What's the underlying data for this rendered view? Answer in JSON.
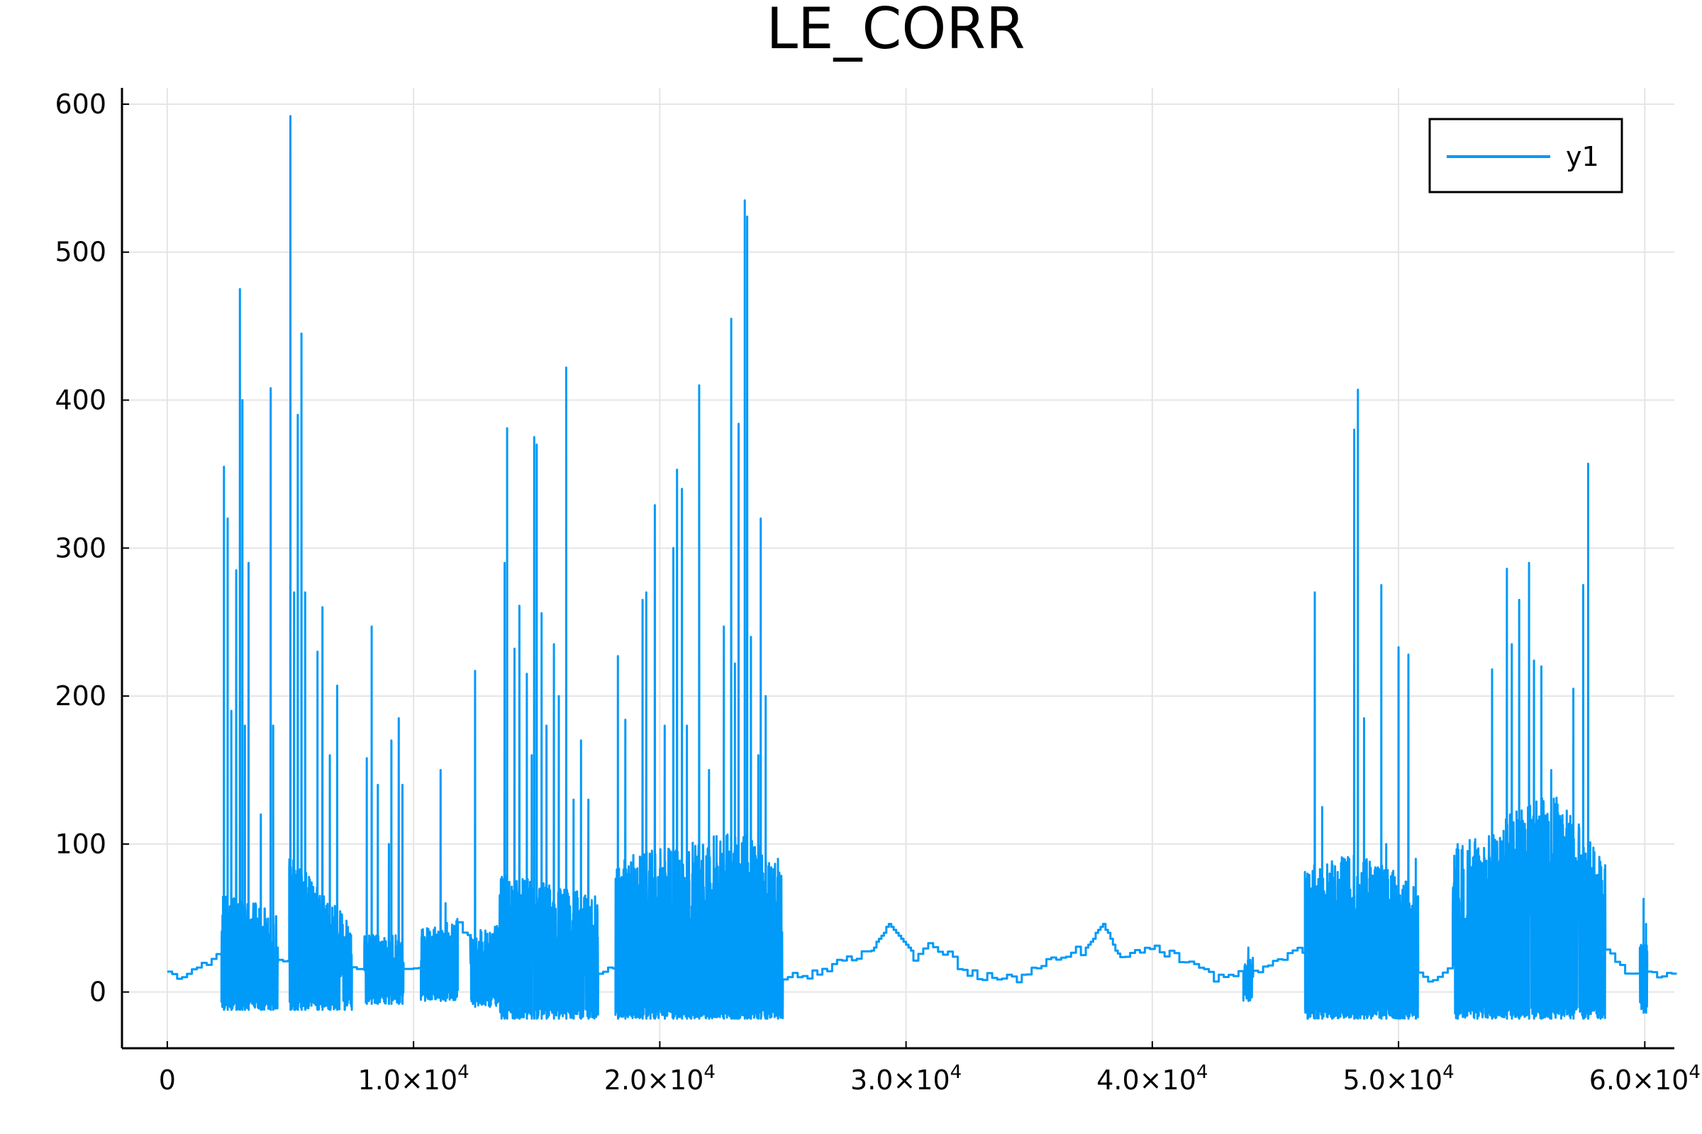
{
  "chart_data": {
    "type": "line",
    "title": "LE_CORR",
    "xlabel": "",
    "ylabel": "",
    "xlim": [
      -1840,
      61200
    ],
    "ylim": [
      -38,
      611
    ],
    "x_ticks": [
      {
        "value": 0,
        "mantissa": "0",
        "exp": ""
      },
      {
        "value": 10000,
        "mantissa": "1.0×10",
        "exp": "4"
      },
      {
        "value": 20000,
        "mantissa": "2.0×10",
        "exp": "4"
      },
      {
        "value": 30000,
        "mantissa": "3.0×10",
        "exp": "4"
      },
      {
        "value": 40000,
        "mantissa": "4.0×10",
        "exp": "4"
      },
      {
        "value": 50000,
        "mantissa": "5.0×10",
        "exp": "4"
      },
      {
        "value": 60000,
        "mantissa": "6.0×10",
        "exp": "4"
      }
    ],
    "y_ticks": [
      0,
      100,
      200,
      300,
      400,
      500,
      600
    ],
    "grid": true,
    "legend_position": "top-right",
    "series": [
      {
        "name": "y1",
        "color": "#009af9",
        "segments": [
          {
            "kind": "step",
            "start": 0,
            "end": 2200,
            "base": [
              [
                0,
                12
              ],
              [
                600,
                10
              ],
              [
                1100,
                15
              ],
              [
                1600,
                20
              ],
              [
                2000,
                24
              ]
            ],
            "noise": 2
          },
          {
            "kind": "noisy",
            "start": 2200,
            "end": 4500,
            "base": [
              [
                2200,
                35
              ],
              [
                3200,
                30
              ],
              [
                4500,
                18
              ]
            ],
            "amp": 30,
            "low": -12,
            "spikes": [
              [
                2300,
                355
              ],
              [
                2450,
                320
              ],
              [
                2600,
                190
              ],
              [
                2800,
                285
              ],
              [
                2950,
                475
              ],
              [
                3050,
                400
              ],
              [
                3150,
                180
              ],
              [
                3300,
                290
              ],
              [
                3800,
                120
              ],
              [
                4200,
                408
              ],
              [
                4300,
                180
              ]
            ]
          },
          {
            "kind": "step",
            "start": 4500,
            "end": 4950,
            "base": [
              [
                4500,
                20
              ],
              [
                4950,
                22
              ]
            ],
            "noise": 2
          },
          {
            "kind": "noisy",
            "start": 4950,
            "end": 7500,
            "base": [
              [
                4950,
                60
              ],
              [
                6000,
                40
              ],
              [
                7500,
                15
              ]
            ],
            "amp": 30,
            "low": -12,
            "spikes": [
              [
                5000,
                592
              ],
              [
                5150,
                270
              ],
              [
                5300,
                390
              ],
              [
                5450,
                445
              ],
              [
                5600,
                270
              ],
              [
                6100,
                230
              ],
              [
                6300,
                260
              ],
              [
                6600,
                160
              ],
              [
                6900,
                207
              ],
              [
                7200,
                30
              ]
            ]
          },
          {
            "kind": "step",
            "start": 7500,
            "end": 8000,
            "base": [
              [
                7500,
                15
              ],
              [
                8000,
                18
              ]
            ],
            "noise": 2
          },
          {
            "kind": "noisy",
            "start": 8000,
            "end": 9600,
            "base": [
              [
                8000,
                20
              ],
              [
                9600,
                18
              ]
            ],
            "amp": 18,
            "low": -8,
            "spikes": [
              [
                8100,
                158
              ],
              [
                8300,
                247
              ],
              [
                8550,
                140
              ],
              [
                9000,
                100
              ],
              [
                9100,
                170
              ],
              [
                9400,
                185
              ],
              [
                9550,
                140
              ]
            ]
          },
          {
            "kind": "step",
            "start": 9600,
            "end": 10300,
            "base": [
              [
                9600,
                14
              ],
              [
                10300,
                20
              ]
            ],
            "noise": 3
          },
          {
            "kind": "noisy",
            "start": 10300,
            "end": 11800,
            "base": [
              [
                10300,
                22
              ],
              [
                11800,
                30
              ]
            ],
            "amp": 18,
            "low": -6,
            "spikes": [
              [
                11100,
                150
              ],
              [
                11300,
                60
              ]
            ]
          },
          {
            "kind": "step",
            "start": 11800,
            "end": 12300,
            "base": [
              [
                11800,
                45
              ],
              [
                12300,
                40
              ]
            ],
            "noise": 3
          },
          {
            "kind": "noisy",
            "start": 12300,
            "end": 13500,
            "base": [
              [
                12300,
                20
              ],
              [
                13500,
                25
              ]
            ],
            "amp": 18,
            "low": -10,
            "spikes": [
              [
                12500,
                217
              ],
              [
                13100,
                40
              ]
            ]
          },
          {
            "kind": "noisy",
            "start": 13500,
            "end": 17500,
            "base": [
              [
                13500,
                40
              ],
              [
                15500,
                35
              ],
              [
                17500,
                25
              ]
            ],
            "amp": 35,
            "low": -18,
            "spikes": [
              [
                13700,
                290
              ],
              [
                13800,
                381
              ],
              [
                14100,
                232
              ],
              [
                14300,
                261
              ],
              [
                14600,
                215
              ],
              [
                14800,
                160
              ],
              [
                14900,
                375
              ],
              [
                15000,
                370
              ],
              [
                15200,
                256
              ],
              [
                15400,
                180
              ],
              [
                15700,
                235
              ],
              [
                15900,
                200
              ],
              [
                16200,
                422
              ],
              [
                16500,
                130
              ],
              [
                16800,
                170
              ],
              [
                17100,
                130
              ]
            ]
          },
          {
            "kind": "step",
            "start": 17500,
            "end": 18200,
            "base": [
              [
                17500,
                14
              ],
              [
                18200,
                18
              ]
            ],
            "noise": 2
          },
          {
            "kind": "noisy",
            "start": 18200,
            "end": 25000,
            "base": [
              [
                18200,
                40
              ],
              [
                21000,
                50
              ],
              [
                23500,
                60
              ],
              [
                25000,
                30
              ]
            ],
            "amp": 45,
            "low": -18,
            "spikes": [
              [
                18300,
                227
              ],
              [
                18600,
                184
              ],
              [
                19300,
                265
              ],
              [
                19450,
                270
              ],
              [
                19800,
                329
              ],
              [
                20200,
                180
              ],
              [
                20550,
                300
              ],
              [
                20700,
                353
              ],
              [
                20900,
                340
              ],
              [
                21100,
                180
              ],
              [
                21600,
                410
              ],
              [
                22000,
                150
              ],
              [
                22600,
                247
              ],
              [
                22900,
                455
              ],
              [
                23050,
                222
              ],
              [
                23200,
                384
              ],
              [
                23450,
                535
              ],
              [
                23550,
                524
              ],
              [
                23700,
                240
              ],
              [
                24000,
                160
              ],
              [
                24100,
                320
              ],
              [
                24300,
                200
              ],
              [
                24800,
                90
              ]
            ]
          },
          {
            "kind": "step",
            "start": 25000,
            "end": 28600,
            "base": [
              [
                25000,
                10
              ],
              [
                26400,
                12
              ],
              [
                27300,
                22
              ],
              [
                28600,
                28
              ]
            ],
            "noise": 3
          },
          {
            "kind": "tri",
            "start": 28600,
            "end": 30300,
            "peak_x": 29300,
            "from": 28,
            "peak": 46,
            "to": 25
          },
          {
            "kind": "step",
            "start": 30300,
            "end": 37300,
            "base": [
              [
                30300,
                22
              ],
              [
                31100,
                32
              ],
              [
                31600,
                25
              ],
              [
                32600,
                12
              ],
              [
                34200,
                8
              ],
              [
                35200,
                15
              ],
              [
                36200,
                22
              ],
              [
                37300,
                30
              ]
            ],
            "noise": 4
          },
          {
            "kind": "tri",
            "start": 37300,
            "end": 38700,
            "peak_x": 38000,
            "from": 30,
            "peak": 46,
            "to": 22
          },
          {
            "kind": "step",
            "start": 38700,
            "end": 43700,
            "base": [
              [
                38700,
                22
              ],
              [
                39800,
                30
              ],
              [
                40800,
                25
              ],
              [
                41500,
                18
              ],
              [
                42500,
                10
              ],
              [
                43700,
                12
              ]
            ],
            "noise": 3
          },
          {
            "kind": "noisy",
            "start": 43700,
            "end": 44100,
            "base": [
              [
                43700,
                10
              ],
              [
                44100,
                12
              ]
            ],
            "amp": 10,
            "low": -6,
            "spikes": [
              [
                43900,
                30
              ]
            ]
          },
          {
            "kind": "step",
            "start": 44100,
            "end": 46200,
            "base": [
              [
                44100,
                14
              ],
              [
                45100,
                22
              ],
              [
                46200,
                30
              ]
            ],
            "noise": 3
          },
          {
            "kind": "noisy",
            "start": 46200,
            "end": 50800,
            "base": [
              [
                46200,
                40
              ],
              [
                48500,
                50
              ],
              [
                50800,
                28
              ]
            ],
            "amp": 40,
            "low": -18,
            "spikes": [
              [
                46300,
                80
              ],
              [
                46600,
                270
              ],
              [
                46900,
                125
              ],
              [
                47300,
                80
              ],
              [
                48200,
                380
              ],
              [
                48350,
                407
              ],
              [
                48600,
                185
              ],
              [
                49300,
                275
              ],
              [
                49500,
                100
              ],
              [
                50000,
                233
              ],
              [
                50400,
                228
              ],
              [
                50700,
                90
              ]
            ]
          },
          {
            "kind": "step",
            "start": 50800,
            "end": 52200,
            "base": [
              [
                50800,
                12
              ],
              [
                51500,
                8
              ],
              [
                52200,
                15
              ]
            ],
            "noise": 3
          },
          {
            "kind": "noisy",
            "start": 52200,
            "end": 58400,
            "base": [
              [
                52200,
                40
              ],
              [
                55000,
                70
              ],
              [
                56500,
                80
              ],
              [
                58400,
                30
              ]
            ],
            "amp": 50,
            "low": -18,
            "spikes": [
              [
                52400,
                100
              ],
              [
                53200,
                80
              ],
              [
                53800,
                218
              ],
              [
                54400,
                286
              ],
              [
                54600,
                235
              ],
              [
                54900,
                265
              ],
              [
                55300,
                290
              ],
              [
                55500,
                224
              ],
              [
                55800,
                220
              ],
              [
                56200,
                150
              ],
              [
                56600,
                110
              ],
              [
                57100,
                205
              ],
              [
                57500,
                275
              ],
              [
                57700,
                357
              ],
              [
                58200,
                85
              ]
            ]
          },
          {
            "kind": "step",
            "start": 58400,
            "end": 59800,
            "base": [
              [
                58400,
                28
              ],
              [
                59100,
                15
              ],
              [
                59800,
                8
              ]
            ],
            "noise": 3
          },
          {
            "kind": "noisy",
            "start": 59800,
            "end": 60100,
            "base": [
              [
                59800,
                15
              ],
              [
                60100,
                18
              ]
            ],
            "amp": 15,
            "low": -14,
            "spikes": [
              [
                59950,
                63
              ],
              [
                60050,
                46
              ]
            ]
          },
          {
            "kind": "step",
            "start": 60100,
            "end": 61300,
            "base": [
              [
                60100,
                12
              ],
              [
                61300,
                11
              ]
            ],
            "noise": 2
          }
        ]
      }
    ]
  }
}
